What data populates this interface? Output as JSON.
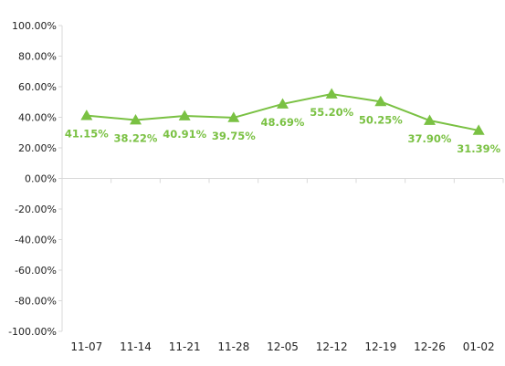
{
  "chart_data": {
    "type": "line",
    "categories": [
      "11-07",
      "11-14",
      "11-21",
      "11-28",
      "12-05",
      "12-12",
      "12-19",
      "12-26",
      "01-02"
    ],
    "series": [
      {
        "values": [
          41.15,
          38.22,
          40.91,
          39.75,
          48.69,
          55.2,
          50.25,
          37.9,
          31.39
        ],
        "labels": [
          "41.15%",
          "38.22%",
          "40.91%",
          "39.75%",
          "48.69%",
          "55.20%",
          "50.25%",
          "37.90%",
          "31.39%"
        ],
        "color": "#7ac143",
        "marker": "triangle"
      }
    ],
    "y_ticks": [
      "100.00%",
      "80.00%",
      "60.00%",
      "40.00%",
      "20.00%",
      "0.00%",
      "-20.00%",
      "-40.00%",
      "-60.00%",
      "-80.00%",
      "-100.00%"
    ],
    "ylim": [
      -100,
      100
    ],
    "grid": false,
    "title": "",
    "xlabel": "",
    "ylabel": ""
  }
}
